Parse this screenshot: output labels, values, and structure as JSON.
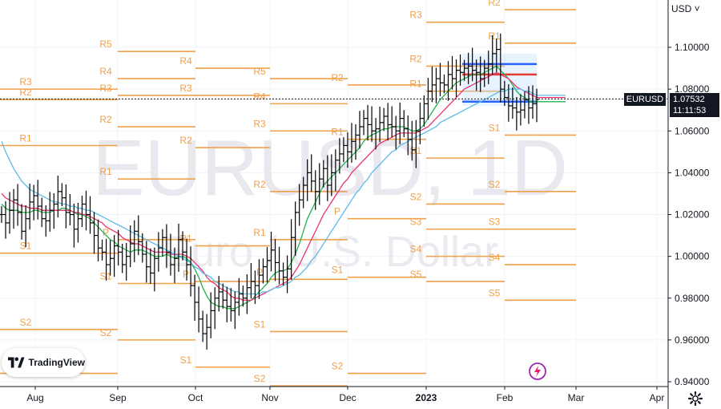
{
  "symbol": "EURUSD",
  "timeframe": "1D",
  "watermark": {
    "line1": "EURUSD, 1D",
    "line2": "Euro / U.S. Dollar"
  },
  "currency_button": "USD ˅",
  "current_price": {
    "price": "1.07532",
    "timer": "11:11:53",
    "symbol_label": "EURUSD"
  },
  "brand": {
    "label": "TradingView"
  },
  "colors": {
    "pivot": "#f0a04b",
    "sma_fast": "#22b14c",
    "sma_mid": "#e8336e",
    "sma_slow": "#5dbbe8",
    "candles": "#000000",
    "box_blue": "#2962ff",
    "box_red": "#e53935",
    "box_fill": "#bbdefb"
  },
  "chart_data": {
    "type": "line",
    "title": "EURUSD, 1D",
    "subtitle": "Euro / U.S. Dollar",
    "price_axis": {
      "min": 0.94,
      "max": 1.1,
      "ticks": [
        "1.10000",
        "1.08000",
        "1.06000",
        "1.04000",
        "1.02000",
        "1.00000",
        "0.98000",
        "0.96000",
        "0.94000"
      ]
    },
    "time_axis": {
      "ticks": [
        "Aug",
        "Sep",
        "Oct",
        "Nov",
        "Dec",
        "2023",
        "Feb",
        "Mar",
        "Apr"
      ]
    },
    "pivot_levels": [
      {
        "period": "2022-08",
        "levels": [
          {
            "name": "R3",
            "value": 1.08
          },
          {
            "name": "R2",
            "value": 1.075
          },
          {
            "name": "R1",
            "value": 1.053
          },
          {
            "name": "S1",
            "value": 1.0015
          },
          {
            "name": "S2",
            "value": 0.965
          },
          {
            "name": "S3",
            "value": 0.944
          }
        ]
      },
      {
        "period": "2022-09",
        "levels": [
          {
            "name": "R5",
            "value": 1.098
          },
          {
            "name": "R4",
            "value": 1.085
          },
          {
            "name": "R3",
            "value": 1.077
          },
          {
            "name": "R2",
            "value": 1.062
          },
          {
            "name": "R1",
            "value": 1.037
          },
          {
            "name": "P",
            "value": 1.008
          },
          {
            "name": "S1",
            "value": 0.987
          },
          {
            "name": "S2",
            "value": 0.96
          }
        ]
      },
      {
        "period": "2022-10",
        "levels": [
          {
            "name": "R4",
            "value": 1.09
          },
          {
            "name": "R3",
            "value": 1.077
          },
          {
            "name": "R2",
            "value": 1.052
          },
          {
            "name": "R1",
            "value": 1.005
          },
          {
            "name": "P",
            "value": 0.988
          },
          {
            "name": "S1",
            "value": 0.947
          }
        ]
      },
      {
        "period": "2022-11",
        "levels": [
          {
            "name": "R5",
            "value": 1.085
          },
          {
            "name": "R4",
            "value": 1.073
          },
          {
            "name": "R3",
            "value": 1.06
          },
          {
            "name": "R2",
            "value": 1.031
          },
          {
            "name": "R1",
            "value": 1.008
          },
          {
            "name": "P",
            "value": 0.989
          },
          {
            "name": "S1",
            "value": 0.964
          },
          {
            "name": "S2",
            "value": 0.938
          }
        ]
      },
      {
        "period": "2022-12",
        "levels": [
          {
            "name": "R2",
            "value": 1.082
          },
          {
            "name": "R1",
            "value": 1.056
          },
          {
            "name": "P",
            "value": 1.018
          },
          {
            "name": "S1",
            "value": 0.99
          },
          {
            "name": "S2",
            "value": 0.944
          }
        ]
      },
      {
        "period": "2023-01",
        "levels": [
          {
            "name": "R3",
            "value": 1.112
          },
          {
            "name": "R2",
            "value": 1.091
          },
          {
            "name": "R1",
            "value": 1.079
          },
          {
            "name": "S1",
            "value": 1.047
          },
          {
            "name": "S2",
            "value": 1.025
          },
          {
            "name": "S3",
            "value": 1.013
          },
          {
            "name": "S4",
            "value": 1.0
          },
          {
            "name": "S5",
            "value": 0.988
          }
        ]
      },
      {
        "period": "2023-02",
        "levels": [
          {
            "name": "R2",
            "value": 1.118
          },
          {
            "name": "R1",
            "value": 1.102
          },
          {
            "name": "S1",
            "value": 1.058
          },
          {
            "name": "S2",
            "value": 1.031
          },
          {
            "name": "S3",
            "value": 1.013
          },
          {
            "name": "S4",
            "value": 0.996
          },
          {
            "name": "S5",
            "value": 0.979
          }
        ]
      }
    ],
    "series": [
      {
        "name": "EURUSD",
        "kind": "ohlc",
        "close": [
          1.02,
          1.016,
          1.022,
          1.027,
          1.021,
          1.012,
          1.018,
          1.026,
          1.029,
          1.024,
          1.018,
          1.017,
          1.022,
          1.025,
          1.031,
          1.028,
          1.021,
          1.02,
          1.013,
          1.018,
          1.025,
          1.02,
          1.016,
          1.01,
          1.004,
          1.002,
          0.996,
          0.999,
          1.005,
          1.002,
          0.996,
          1.0,
          1.006,
          1.012,
          1.007,
          1.001,
          0.995,
          0.992,
          0.999,
          1.004,
          1.009,
          1.002,
          0.996,
          0.999,
          1.008,
          1.002,
          0.996,
          0.986,
          0.978,
          0.97,
          0.963,
          0.966,
          0.974,
          0.98,
          0.983,
          0.979,
          0.976,
          0.974,
          0.978,
          0.982,
          0.98,
          0.985,
          0.988,
          0.986,
          0.991,
          0.995,
          0.998,
          1.003,
          0.997,
          0.993,
          0.99,
          0.994,
          1.009,
          1.021,
          1.027,
          1.034,
          1.04,
          1.036,
          1.031,
          1.037,
          1.042,
          1.034,
          1.04,
          1.046,
          1.049,
          1.053,
          1.05,
          1.055,
          1.058,
          1.062,
          1.066,
          1.063,
          1.06,
          1.061,
          1.064,
          1.067,
          1.063,
          1.062,
          1.06,
          1.066,
          1.061,
          1.056,
          1.051,
          1.06,
          1.066,
          1.073,
          1.079,
          1.082,
          1.085,
          1.083,
          1.082,
          1.087,
          1.085,
          1.089,
          1.088,
          1.09,
          1.091,
          1.089,
          1.088,
          1.085,
          1.09,
          1.092,
          1.097,
          1.099,
          1.08,
          1.076,
          1.072,
          1.071,
          1.069,
          1.07,
          1.075,
          1.071,
          1.073,
          1.075
        ]
      },
      {
        "name": "SMA fast",
        "values": [
          1.025,
          1.023,
          1.022,
          1.022,
          1.022,
          1.021,
          1.021,
          1.021,
          1.022,
          1.022,
          1.021,
          1.021,
          1.021,
          1.022,
          1.022,
          1.023,
          1.023,
          1.022,
          1.021,
          1.02,
          1.02,
          1.019,
          1.018,
          1.016,
          1.014,
          1.012,
          1.01,
          1.008,
          1.007,
          1.005,
          1.004,
          1.003,
          1.002,
          1.003,
          1.003,
          1.003,
          1.002,
          1.001,
          1.0,
          1.0,
          1.0,
          1.001,
          1.0,
          0.999,
          1.0,
          1.0,
          0.999,
          0.997,
          0.994,
          0.99,
          0.985,
          0.981,
          0.978,
          0.977,
          0.976,
          0.976,
          0.975,
          0.975,
          0.975,
          0.976,
          0.977,
          0.978,
          0.979,
          0.981,
          0.983,
          0.985,
          0.987,
          0.99,
          0.992,
          0.993,
          0.993,
          0.994,
          0.997,
          1.001,
          1.006,
          1.012,
          1.018,
          1.022,
          1.026,
          1.03,
          1.034,
          1.036,
          1.038,
          1.04,
          1.042,
          1.044,
          1.046,
          1.048,
          1.05,
          1.052,
          1.055,
          1.057,
          1.058,
          1.059,
          1.06,
          1.061,
          1.061,
          1.062,
          1.062,
          1.062,
          1.062,
          1.061,
          1.06,
          1.06,
          1.061,
          1.063,
          1.066,
          1.069,
          1.072,
          1.075,
          1.077,
          1.079,
          1.081,
          1.083,
          1.084,
          1.085,
          1.086,
          1.087,
          1.087,
          1.087,
          1.088,
          1.089,
          1.09,
          1.091,
          1.089,
          1.087,
          1.085,
          1.082,
          1.079,
          1.077,
          1.076,
          1.074,
          1.074,
          1.074
        ]
      },
      {
        "name": "SMA mid",
        "values": [
          1.03,
          1.028,
          1.027,
          1.026,
          1.025,
          1.024,
          1.024,
          1.023,
          1.023,
          1.023,
          1.022,
          1.022,
          1.022,
          1.022,
          1.022,
          1.022,
          1.022,
          1.022,
          1.021,
          1.021,
          1.02,
          1.02,
          1.019,
          1.018,
          1.017,
          1.016,
          1.014,
          1.013,
          1.012,
          1.011,
          1.009,
          1.008,
          1.007,
          1.006,
          1.006,
          1.005,
          1.004,
          1.003,
          1.002,
          1.002,
          1.002,
          1.002,
          1.001,
          1.001,
          1.001,
          1.001,
          1.0,
          0.999,
          0.997,
          0.995,
          0.993,
          0.99,
          0.988,
          0.987,
          0.985,
          0.984,
          0.983,
          0.981,
          0.98,
          0.98,
          0.979,
          0.979,
          0.979,
          0.98,
          0.981,
          0.982,
          0.983,
          0.984,
          0.985,
          0.986,
          0.987,
          0.988,
          0.99,
          0.993,
          0.996,
          1.0,
          1.004,
          1.008,
          1.012,
          1.016,
          1.02,
          1.023,
          1.026,
          1.029,
          1.032,
          1.035,
          1.037,
          1.04,
          1.042,
          1.044,
          1.046,
          1.048,
          1.05,
          1.052,
          1.054,
          1.055,
          1.056,
          1.057,
          1.058,
          1.059,
          1.059,
          1.059,
          1.059,
          1.059,
          1.06,
          1.061,
          1.062,
          1.064,
          1.066,
          1.068,
          1.07,
          1.072,
          1.074,
          1.076,
          1.078,
          1.08,
          1.081,
          1.082,
          1.083,
          1.084,
          1.085,
          1.086,
          1.087,
          1.088,
          1.087,
          1.086,
          1.085,
          1.083,
          1.081,
          1.08,
          1.079,
          1.078,
          1.077,
          1.076
        ]
      },
      {
        "name": "SMA slow",
        "values": [
          1.055,
          1.05,
          1.046,
          1.042,
          1.039,
          1.036,
          1.034,
          1.032,
          1.031,
          1.03,
          1.029,
          1.028,
          1.027,
          1.026,
          1.026,
          1.025,
          1.025,
          1.024,
          1.024,
          1.023,
          1.023,
          1.022,
          1.022,
          1.021,
          1.02,
          1.019,
          1.018,
          1.017,
          1.016,
          1.015,
          1.014,
          1.013,
          1.012,
          1.011,
          1.01,
          1.009,
          1.008,
          1.007,
          1.006,
          1.005,
          1.004,
          1.003,
          1.002,
          1.001,
          1.0,
          0.999,
          0.998,
          0.997,
          0.995,
          0.994,
          0.992,
          0.991,
          0.99,
          0.988,
          0.987,
          0.986,
          0.985,
          0.984,
          0.983,
          0.983,
          0.982,
          0.982,
          0.982,
          0.982,
          0.982,
          0.983,
          0.983,
          0.984,
          0.985,
          0.985,
          0.986,
          0.987,
          0.988,
          0.99,
          0.991,
          0.993,
          0.995,
          0.998,
          1.0,
          1.003,
          1.006,
          1.009,
          1.012,
          1.015,
          1.018,
          1.021,
          1.024,
          1.027,
          1.03,
          1.032,
          1.035,
          1.037,
          1.04,
          1.042,
          1.044,
          1.046,
          1.048,
          1.05,
          1.051,
          1.053,
          1.054,
          1.055,
          1.056,
          1.057,
          1.058,
          1.059,
          1.06,
          1.061,
          1.062,
          1.064,
          1.065,
          1.066,
          1.067,
          1.068,
          1.069,
          1.07,
          1.071,
          1.072,
          1.073,
          1.074,
          1.075,
          1.076,
          1.077,
          1.078,
          1.079,
          1.079,
          1.08,
          1.08,
          1.08,
          1.08,
          1.079,
          1.079,
          1.078,
          1.077
        ]
      }
    ],
    "current_price": 1.07532,
    "grid": true,
    "legend": "none"
  }
}
